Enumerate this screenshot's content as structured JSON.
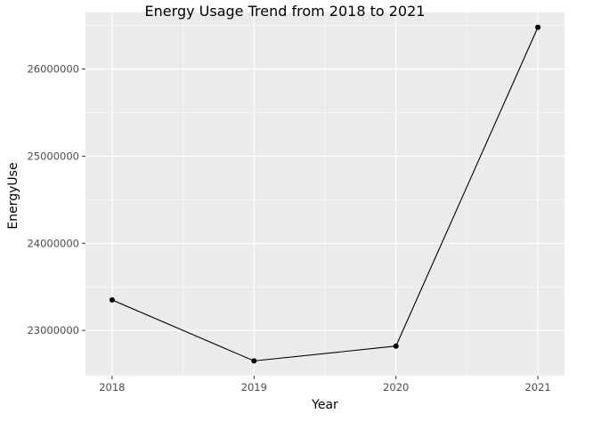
{
  "chart_data": {
    "type": "line",
    "title": "Energy Usage Trend from 2018 to 2021",
    "xlabel": "Year",
    "ylabel": "EnergyUse",
    "x": [
      2018,
      2019,
      2020,
      2021
    ],
    "series": [
      {
        "values": [
          23350000,
          22650000,
          22820000,
          26480000
        ]
      }
    ],
    "xticks": [
      "2018",
      "2019",
      "2020",
      "2021"
    ],
    "yticks": [
      "23000000",
      "24000000",
      "25000000",
      "26000000"
    ],
    "ytick_values": [
      23000000,
      24000000,
      25000000,
      26000000
    ],
    "ylim": [
      22480000,
      26650000
    ],
    "grid": true,
    "colors": {
      "panel": "#ebebeb",
      "grid": "#ffffff",
      "line": "#000000",
      "point": "#000000"
    }
  }
}
